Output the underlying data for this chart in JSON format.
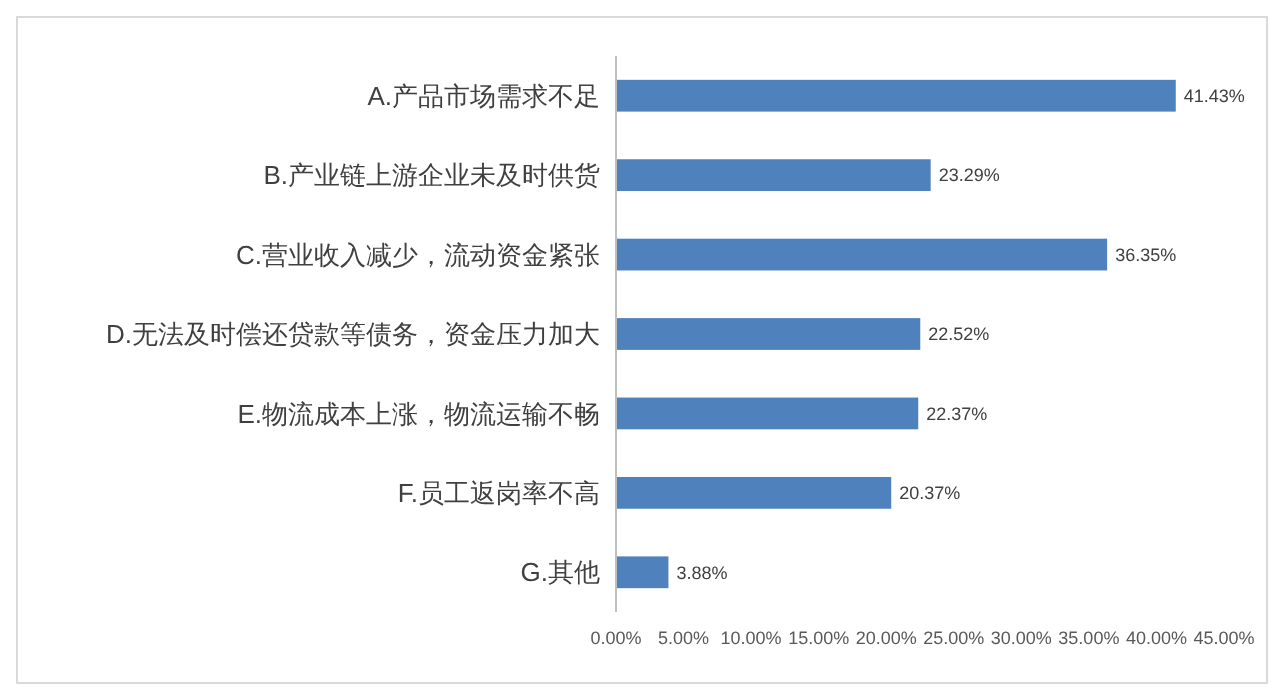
{
  "chart_data": {
    "type": "bar",
    "orientation": "horizontal",
    "categories": [
      "A.产品市场需求不足",
      "B.产业链上游企业未及时供货",
      "C.营业收入减少，流动资金紧张",
      "D.无法及时偿还贷款等债务，资金压力加大",
      "E.物流成本上涨，物流运输不畅",
      "F.员工返岗率不高",
      "G.其他"
    ],
    "values": [
      41.43,
      23.29,
      36.35,
      22.52,
      22.37,
      20.37,
      3.88
    ],
    "value_labels": [
      "41.43%",
      "23.29%",
      "36.35%",
      "22.52%",
      "22.37%",
      "20.37%",
      "3.88%"
    ],
    "color": "#4f81bd",
    "xlim": [
      0,
      45
    ],
    "xticks": [
      {
        "value": 0,
        "label": "0.00%"
      },
      {
        "value": 5,
        "label": "5.00%"
      },
      {
        "value": 10,
        "label": "10.00%"
      },
      {
        "value": 15,
        "label": "15.00%"
      },
      {
        "value": 20,
        "label": "20.00%"
      },
      {
        "value": 25,
        "label": "25.00%"
      },
      {
        "value": 30,
        "label": "30.00%"
      },
      {
        "value": 35,
        "label": "35.00%"
      },
      {
        "value": 40,
        "label": "40.00%"
      },
      {
        "value": 45,
        "label": "45.00%"
      }
    ],
    "grid": false
  }
}
